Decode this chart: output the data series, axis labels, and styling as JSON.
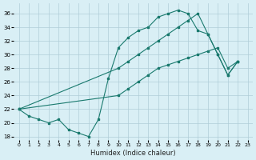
{
  "xlabel": "Humidex (Indice chaleur)",
  "bg_color": "#d9eff5",
  "grid_color": "#b0cdd8",
  "line_color": "#1a7a6e",
  "xlim": [
    -0.5,
    23.5
  ],
  "ylim": [
    17.5,
    37.5
  ],
  "xticks": [
    0,
    1,
    2,
    3,
    4,
    5,
    6,
    7,
    8,
    9,
    10,
    11,
    12,
    13,
    14,
    15,
    16,
    17,
    18,
    19,
    20,
    21,
    22,
    23
  ],
  "yticks": [
    18,
    20,
    22,
    24,
    26,
    28,
    30,
    32,
    34,
    36
  ],
  "line1_x": [
    0,
    1,
    2,
    3,
    4,
    5,
    6,
    7,
    8,
    9,
    10,
    11,
    12,
    13,
    14,
    15,
    16,
    17,
    18,
    19,
    20,
    21,
    22
  ],
  "line1_y": [
    22,
    21,
    20.5,
    20,
    20.5,
    19,
    18.5,
    18,
    20.5,
    26.5,
    31,
    32.5,
    33.5,
    34,
    35.5,
    36,
    36.5,
    36,
    33.5,
    33,
    30,
    27,
    29
  ],
  "line2_x": [
    0,
    10,
    11,
    12,
    13,
    14,
    15,
    16,
    17,
    18,
    19,
    20,
    21,
    22
  ],
  "line2_y": [
    22,
    28,
    29,
    30,
    31,
    32,
    33,
    34,
    35,
    36,
    33,
    30,
    27,
    29
  ],
  "line3_x": [
    0,
    10,
    11,
    12,
    13,
    14,
    15,
    16,
    17,
    18,
    19,
    20,
    21,
    22
  ],
  "line3_y": [
    22,
    24,
    25,
    26,
    27,
    28,
    28.5,
    29,
    29.5,
    30,
    30.5,
    31,
    28,
    29
  ]
}
